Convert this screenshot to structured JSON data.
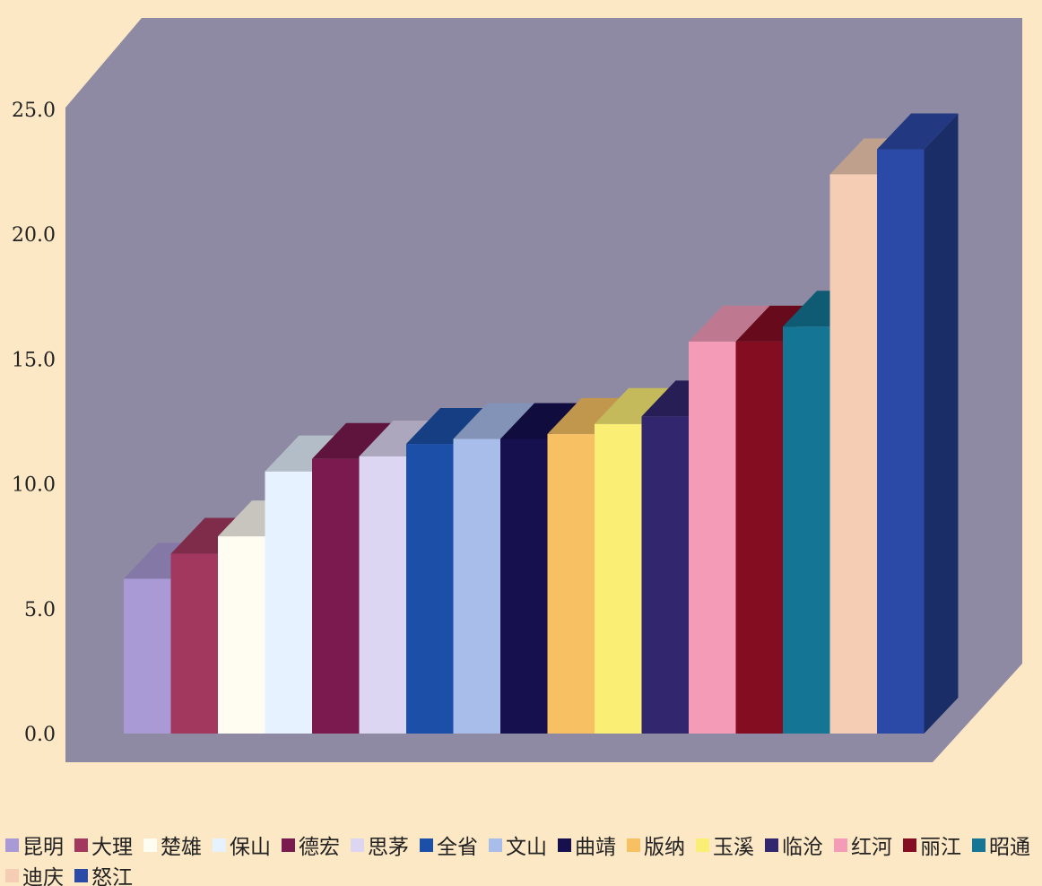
{
  "chart_data": {
    "type": "bar",
    "style": "3d-column",
    "categories": [
      "昆明",
      "大理",
      "楚雄",
      "保山",
      "德宏",
      "思茅",
      "全省",
      "文山",
      "曲靖",
      "版纳",
      "玉溪",
      "临沧",
      "红河",
      "丽江",
      "昭通",
      "迪庆",
      "怒江"
    ],
    "values": [
      6.2,
      7.2,
      7.9,
      10.5,
      11.0,
      11.1,
      11.6,
      11.8,
      11.8,
      12.0,
      12.4,
      12.7,
      15.7,
      15.7,
      16.3,
      22.4,
      23.4
    ],
    "colors": [
      "#a99ad6",
      "#a3385f",
      "#fffdf2",
      "#e6f2ff",
      "#7a1a4e",
      "#dcd6f2",
      "#1c4fa8",
      "#a8bdea",
      "#16104f",
      "#f7c063",
      "#fbee75",
      "#32276e",
      "#f49bb8",
      "#840d22",
      "#157595",
      "#f5cdb5",
      "#2b49a6"
    ],
    "ylim": [
      0,
      25
    ],
    "yticks": [
      "0.0",
      "5.0",
      "10.0",
      "15.0",
      "20.0",
      "25.0"
    ],
    "grid": false,
    "background": "#8f8aa3",
    "page_background": "#fde8c6",
    "legend_position": "bottom"
  }
}
